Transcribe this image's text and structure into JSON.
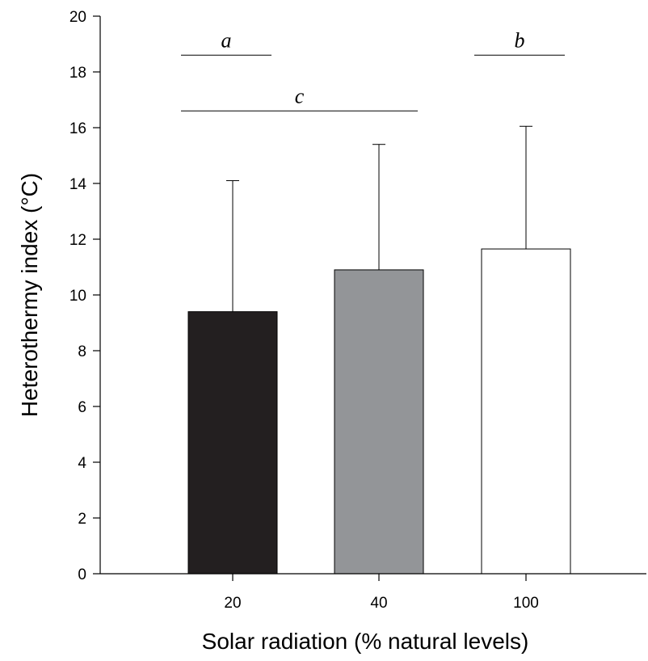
{
  "chart_data": {
    "type": "bar",
    "title": "",
    "xlabel": "Solar radiation (% natural levels)",
    "ylabel": "Heterothermy index (°C)",
    "ylim": [
      0,
      20
    ],
    "yticks": [
      0,
      2,
      4,
      6,
      8,
      10,
      12,
      14,
      16,
      18,
      20
    ],
    "categories": [
      "20",
      "40",
      "100"
    ],
    "values": [
      9.4,
      10.9,
      11.65
    ],
    "error_upper": [
      14.1,
      15.4,
      16.05
    ],
    "bar_colors": [
      "#231f20",
      "#939598",
      "#ffffff"
    ],
    "grid": false,
    "significance": [
      {
        "label": "a",
        "from_category": "20",
        "y": 18.6
      },
      {
        "label": "b",
        "from_category": "100",
        "y": 18.6
      },
      {
        "label": "c",
        "from_category": "20",
        "to_category": "40",
        "y": 16.6
      }
    ]
  }
}
